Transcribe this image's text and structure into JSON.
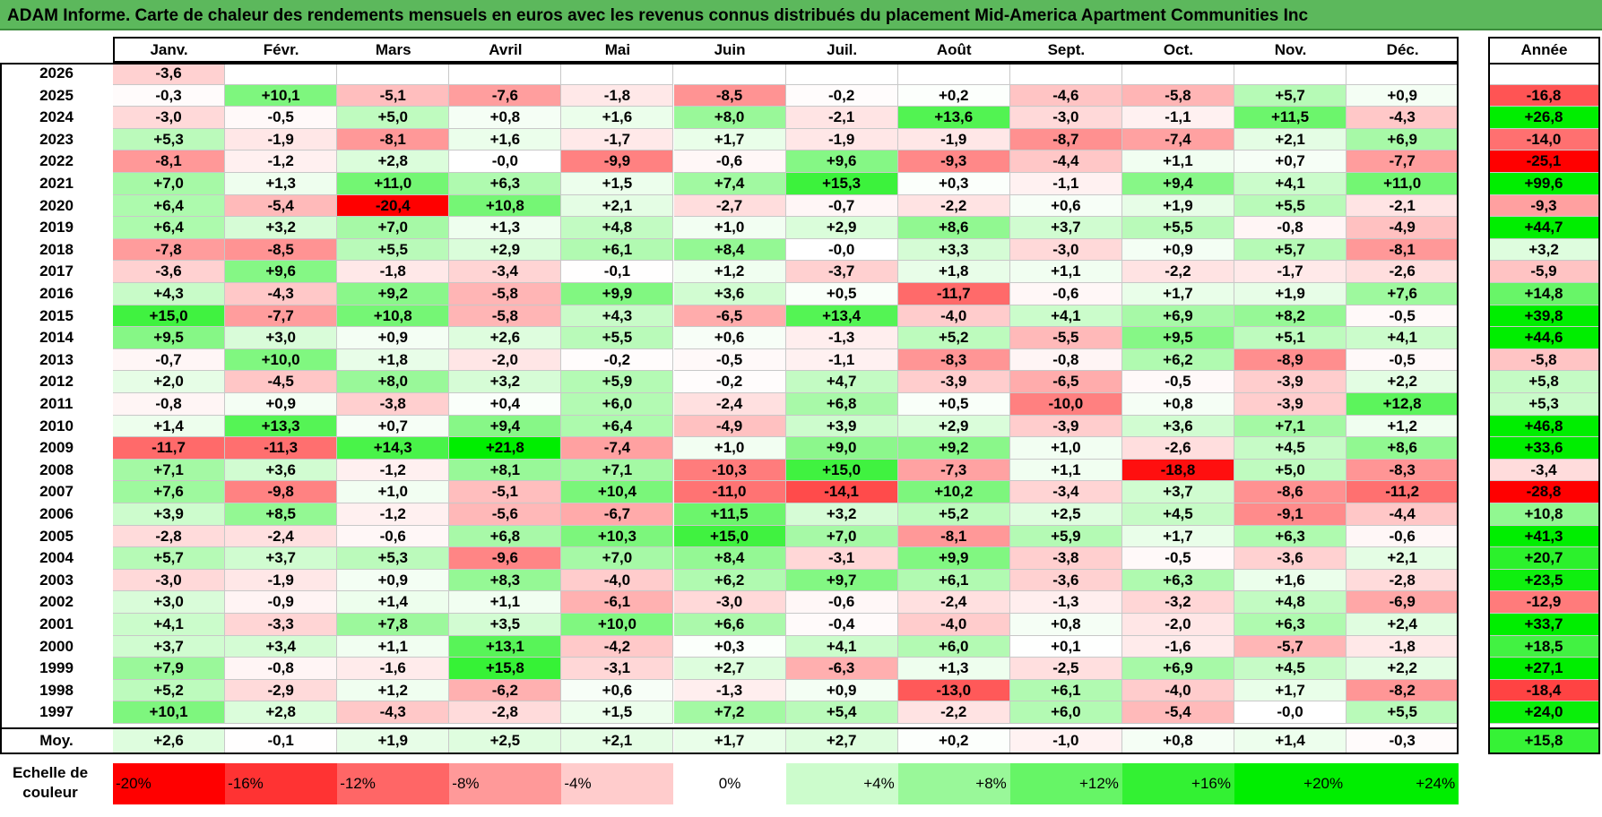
{
  "title": "ADAM Informe. Carte de chaleur des rendements mensuels en euros avec les revenus connus distribués du placement Mid-America Apartment Communities Inc",
  "chart_data": {
    "type": "heatmap",
    "title": "ADAM Informe. Carte de chaleur des rendements mensuels en euros avec les revenus connus distribués du placement Mid-America Apartment Communities Inc",
    "months": [
      "Janv.",
      "Févr.",
      "Mars",
      "Avril",
      "Mai",
      "Juin",
      "Juil.",
      "Août",
      "Sept.",
      "Oct.",
      "Nov.",
      "Déc."
    ],
    "year_header": "Année",
    "rows": [
      {
        "year": "2026",
        "values": [
          "-3,6",
          "",
          "",
          "",
          "",
          "",
          "",
          "",
          "",
          "",
          "",
          ""
        ],
        "annual": ""
      },
      {
        "year": "2025",
        "values": [
          "-0,3",
          "+10,1",
          "-5,1",
          "-7,6",
          "-1,8",
          "-8,5",
          "-0,2",
          "+0,2",
          "-4,6",
          "-5,8",
          "+5,7",
          "+0,9"
        ],
        "annual": "-16,8"
      },
      {
        "year": "2024",
        "values": [
          "-3,0",
          "-0,5",
          "+5,0",
          "+0,8",
          "+1,6",
          "+8,0",
          "-2,1",
          "+13,6",
          "-3,0",
          "-1,1",
          "+11,5",
          "-4,3"
        ],
        "annual": "+26,8"
      },
      {
        "year": "2023",
        "values": [
          "+5,3",
          "-1,9",
          "-8,1",
          "+1,6",
          "-1,7",
          "+1,7",
          "-1,9",
          "-1,9",
          "-8,7",
          "-7,4",
          "+2,1",
          "+6,9"
        ],
        "annual": "-14,0"
      },
      {
        "year": "2022",
        "values": [
          "-8,1",
          "-1,2",
          "+2,8",
          "-0,0",
          "-9,9",
          "-0,6",
          "+9,6",
          "-9,3",
          "-4,4",
          "+1,1",
          "+0,7",
          "-7,7"
        ],
        "annual": "-25,1"
      },
      {
        "year": "2021",
        "values": [
          "+7,0",
          "+1,3",
          "+11,0",
          "+6,3",
          "+1,5",
          "+7,4",
          "+15,3",
          "+0,3",
          "-1,1",
          "+9,4",
          "+4,1",
          "+11,0"
        ],
        "annual": "+99,6"
      },
      {
        "year": "2020",
        "values": [
          "+6,4",
          "-5,4",
          "-20,4",
          "+10,8",
          "+2,1",
          "-2,7",
          "-0,7",
          "-2,2",
          "+0,6",
          "+1,9",
          "+5,5",
          "-2,1"
        ],
        "annual": "-9,3"
      },
      {
        "year": "2019",
        "values": [
          "+6,4",
          "+3,2",
          "+7,0",
          "+1,3",
          "+4,8",
          "+1,0",
          "+2,9",
          "+8,6",
          "+3,7",
          "+5,5",
          "-0,8",
          "-4,9"
        ],
        "annual": "+44,7"
      },
      {
        "year": "2018",
        "values": [
          "-7,8",
          "-8,5",
          "+5,5",
          "+2,9",
          "+6,1",
          "+8,4",
          "-0,0",
          "+3,3",
          "-3,0",
          "+0,9",
          "+5,7",
          "-8,1"
        ],
        "annual": "+3,2"
      },
      {
        "year": "2017",
        "values": [
          "-3,6",
          "+9,6",
          "-1,8",
          "-3,4",
          "-0,1",
          "+1,2",
          "-3,7",
          "+1,8",
          "+1,1",
          "-2,2",
          "-1,7",
          "-2,6"
        ],
        "annual": "-5,9"
      },
      {
        "year": "2016",
        "values": [
          "+4,3",
          "-4,3",
          "+9,2",
          "-5,8",
          "+9,9",
          "+3,6",
          "+0,5",
          "-11,7",
          "-0,6",
          "+1,7",
          "+1,9",
          "+7,6"
        ],
        "annual": "+14,8"
      },
      {
        "year": "2015",
        "values": [
          "+15,0",
          "-7,7",
          "+10,8",
          "-5,8",
          "+4,3",
          "-6,5",
          "+13,4",
          "-4,0",
          "+4,1",
          "+6,9",
          "+8,2",
          "-0,5"
        ],
        "annual": "+39,8"
      },
      {
        "year": "2014",
        "values": [
          "+9,5",
          "+3,0",
          "+0,9",
          "+2,6",
          "+5,5",
          "+0,6",
          "-1,3",
          "+5,2",
          "-5,5",
          "+9,5",
          "+5,1",
          "+4,1"
        ],
        "annual": "+44,6"
      },
      {
        "year": "2013",
        "values": [
          "-0,7",
          "+10,0",
          "+1,8",
          "-2,0",
          "-0,2",
          "-0,5",
          "-1,1",
          "-8,3",
          "-0,8",
          "+6,2",
          "-8,9",
          "-0,5"
        ],
        "annual": "-5,8"
      },
      {
        "year": "2012",
        "values": [
          "+2,0",
          "-4,5",
          "+8,0",
          "+3,2",
          "+5,9",
          "-0,2",
          "+4,7",
          "-3,9",
          "-6,5",
          "-0,5",
          "-3,9",
          "+2,2"
        ],
        "annual": "+5,8"
      },
      {
        "year": "2011",
        "values": [
          "-0,8",
          "+0,9",
          "-3,8",
          "+0,4",
          "+6,0",
          "-2,4",
          "+6,8",
          "+0,5",
          "-10,0",
          "+0,8",
          "-3,9",
          "+12,8"
        ],
        "annual": "+5,3"
      },
      {
        "year": "2010",
        "values": [
          "+1,4",
          "+13,3",
          "+0,7",
          "+9,4",
          "+6,4",
          "-4,9",
          "+3,9",
          "+2,9",
          "-3,9",
          "+3,6",
          "+7,1",
          "+1,2"
        ],
        "annual": "+46,8"
      },
      {
        "year": "2009",
        "values": [
          "-11,7",
          "-11,3",
          "+14,3",
          "+21,8",
          "-7,4",
          "+1,0",
          "+9,0",
          "+9,2",
          "+1,0",
          "-2,6",
          "+4,5",
          "+8,6"
        ],
        "annual": "+33,6"
      },
      {
        "year": "2008",
        "values": [
          "+7,1",
          "+3,6",
          "-1,2",
          "+8,1",
          "+7,1",
          "-10,3",
          "+15,0",
          "-7,3",
          "+1,1",
          "-18,8",
          "+5,0",
          "-8,3"
        ],
        "annual": "-3,4"
      },
      {
        "year": "2007",
        "values": [
          "+7,6",
          "-9,8",
          "+1,0",
          "-5,1",
          "+10,4",
          "-11,0",
          "-14,1",
          "+10,2",
          "-3,4",
          "+3,7",
          "-8,6",
          "-11,2"
        ],
        "annual": "-28,8"
      },
      {
        "year": "2006",
        "values": [
          "+3,9",
          "+8,5",
          "-1,2",
          "-5,6",
          "-6,7",
          "+11,5",
          "+3,2",
          "+5,2",
          "+2,5",
          "+4,5",
          "-9,1",
          "-4,4"
        ],
        "annual": "+10,8"
      },
      {
        "year": "2005",
        "values": [
          "-2,8",
          "-2,4",
          "-0,6",
          "+6,8",
          "+10,3",
          "+15,0",
          "+7,0",
          "-8,1",
          "+5,9",
          "+1,7",
          "+6,3",
          "-0,6"
        ],
        "annual": "+41,3"
      },
      {
        "year": "2004",
        "values": [
          "+5,7",
          "+3,7",
          "+5,3",
          "-9,6",
          "+7,0",
          "+8,4",
          "-3,1",
          "+9,9",
          "-3,8",
          "-0,5",
          "-3,6",
          "+2,1"
        ],
        "annual": "+20,7"
      },
      {
        "year": "2003",
        "values": [
          "-3,0",
          "-1,9",
          "+0,9",
          "+8,3",
          "-4,0",
          "+6,2",
          "+9,7",
          "+6,1",
          "-3,6",
          "+6,3",
          "+1,6",
          "-2,8"
        ],
        "annual": "+23,5"
      },
      {
        "year": "2002",
        "values": [
          "+3,0",
          "-0,9",
          "+1,4",
          "+1,1",
          "-6,1",
          "-3,0",
          "-0,6",
          "-2,4",
          "-1,3",
          "-3,2",
          "+4,8",
          "-6,9"
        ],
        "annual": "-12,9"
      },
      {
        "year": "2001",
        "values": [
          "+4,1",
          "-3,3",
          "+7,8",
          "+3,5",
          "+10,0",
          "+6,6",
          "-0,4",
          "-4,0",
          "+0,8",
          "-2,0",
          "+6,3",
          "+2,4"
        ],
        "annual": "+33,7"
      },
      {
        "year": "2000",
        "values": [
          "+3,7",
          "+3,4",
          "+1,1",
          "+13,1",
          "-4,2",
          "+0,3",
          "+4,1",
          "+6,0",
          "+0,1",
          "-1,6",
          "-5,7",
          "-1,8"
        ],
        "annual": "+18,5"
      },
      {
        "year": "1999",
        "values": [
          "+7,9",
          "-0,8",
          "-1,6",
          "+15,8",
          "-3,1",
          "+2,7",
          "-6,3",
          "+1,3",
          "-2,5",
          "+6,9",
          "+4,5",
          "+2,2"
        ],
        "annual": "+27,1"
      },
      {
        "year": "1998",
        "values": [
          "+5,2",
          "-2,9",
          "+1,2",
          "-6,2",
          "+0,6",
          "-1,3",
          "+0,9",
          "-13,0",
          "+6,1",
          "-4,0",
          "+1,7",
          "-8,2"
        ],
        "annual": "-18,4"
      },
      {
        "year": "1997",
        "values": [
          "+10,1",
          "+2,8",
          "-4,3",
          "-2,8",
          "+1,5",
          "+7,2",
          "+5,4",
          "-2,2",
          "+6,0",
          "-5,4",
          "-0,0",
          "+5,5"
        ],
        "annual": "+24,0"
      }
    ],
    "average": {
      "label": "Moy.",
      "values": [
        "+2,6",
        "-0,1",
        "+1,9",
        "+2,5",
        "+2,1",
        "+1,7",
        "+2,7",
        "+0,2",
        "-1,0",
        "+0,8",
        "+1,4",
        "-0,3"
      ],
      "annual": "+15,8"
    },
    "scale": {
      "label_line1": "Echelle de",
      "label_line2": "couleur",
      "labels": [
        "-20%",
        "-16%",
        "-12%",
        "-8%",
        "-4%",
        "0%",
        "+4%",
        "+8%",
        "+12%",
        "+16%",
        "+20%",
        "+24%"
      ],
      "values": [
        -20,
        -16,
        -12,
        -8,
        -4,
        0,
        4,
        8,
        12,
        16,
        20,
        24
      ]
    },
    "colors": {
      "negative_max": "#ff0000",
      "positive_max": "#00ee00",
      "neutral": "#ffffff",
      "title_bg": "#5cb85c"
    }
  }
}
